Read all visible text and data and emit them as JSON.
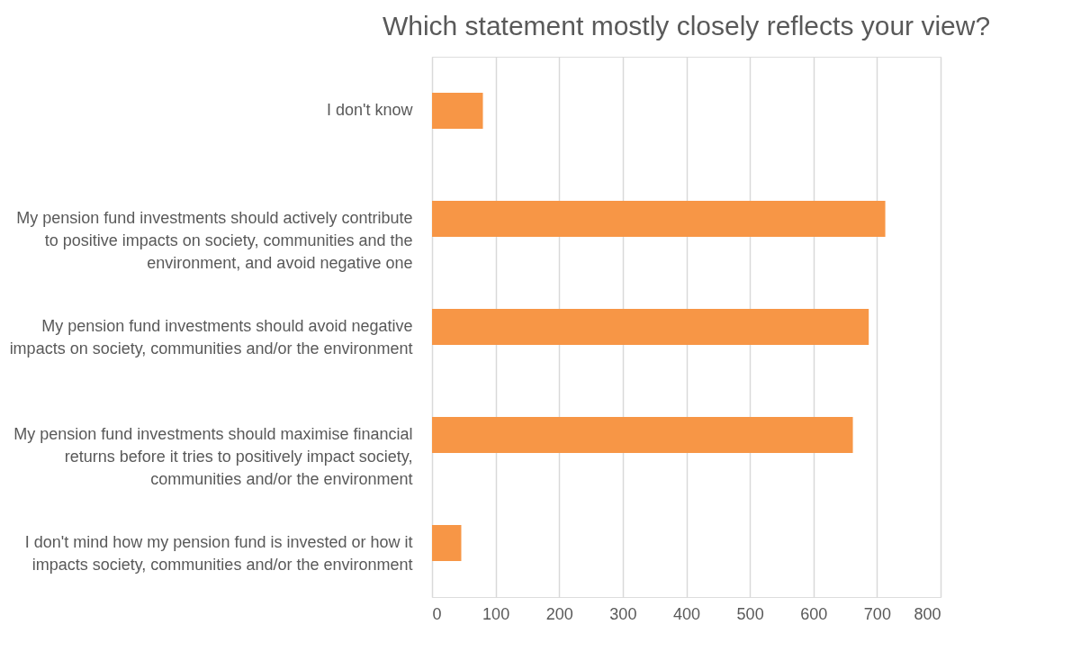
{
  "chart_data": {
    "type": "bar",
    "orientation": "horizontal",
    "title": "Which statement mostly closely reflects your view?",
    "categories": [
      "I don't know",
      "My pension fund investments should actively contribute to positive impacts on society, communities and the environment, and avoid negative one",
      "My pension fund investments should avoid negative impacts on society, communities and/or the environment",
      "My pension fund investments should maximise financial returns before it tries to positively impact society, communities and/or the environment",
      "I don't mind how my pension fund is invested or how it impacts society, communities and/or the environment"
    ],
    "values": [
      80,
      713,
      687,
      662,
      46
    ],
    "color": "#f79646",
    "xlim": [
      0,
      800
    ],
    "xticks": [
      0,
      100,
      200,
      300,
      400,
      500,
      600,
      700,
      800
    ],
    "grid": "x"
  }
}
